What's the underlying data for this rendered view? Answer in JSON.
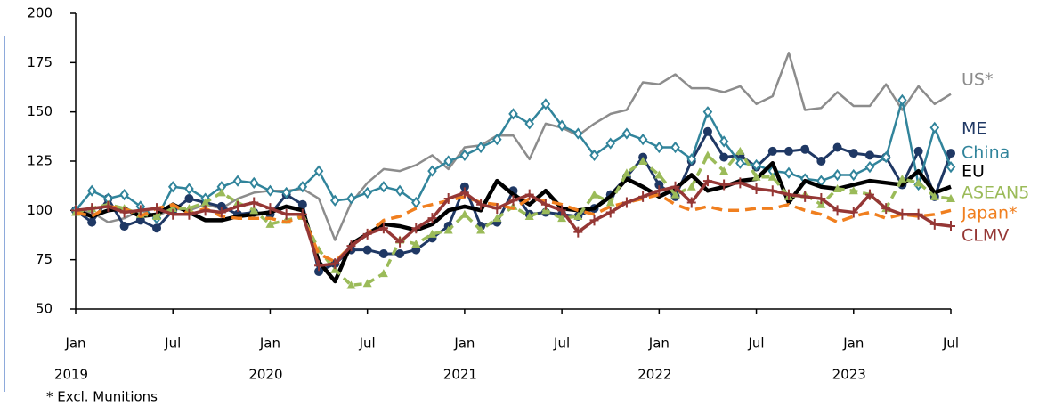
{
  "chart_data": {
    "type": "line",
    "categories": [
      "Jan",
      null,
      null,
      null,
      null,
      null,
      "Jul",
      null,
      null,
      null,
      null,
      null,
      "Jan",
      null,
      null,
      null,
      null,
      null,
      "Jul",
      null,
      null,
      null,
      null,
      null,
      "Jan",
      null,
      null,
      null,
      null,
      null,
      "Jul",
      null,
      null,
      null,
      null,
      null,
      "Jan",
      null,
      null,
      null,
      null,
      null,
      "Jul",
      null,
      null,
      null,
      null,
      null,
      "Jan",
      null,
      null,
      null,
      null,
      null,
      "Jul"
    ],
    "years": [
      "2019",
      "2020",
      "2021",
      "2022",
      "2023"
    ],
    "ylim": [
      50,
      200
    ],
    "yticks": [
      50,
      75,
      100,
      125,
      150,
      175,
      200
    ],
    "note": "* Excl. Munitions",
    "series": [
      {
        "name": "US*",
        "color": "#8c8c8c",
        "marker": "none",
        "values": [
          100,
          99,
          94,
          96,
          100,
          97,
          101,
          100,
          103,
          101,
          106,
          109,
          110,
          110,
          111,
          106,
          85,
          104,
          114,
          121,
          120,
          123,
          128,
          121,
          132,
          133,
          138,
          138,
          126,
          144,
          142,
          138,
          144,
          149,
          151,
          165,
          164,
          169,
          162,
          162,
          160,
          163,
          154,
          158,
          180,
          151,
          152,
          160,
          153,
          153,
          164,
          151,
          163,
          154,
          159
        ]
      },
      {
        "name": "ME",
        "color": "#1f3864",
        "marker": "circle",
        "values": [
          100,
          94,
          106,
          92,
          95,
          91,
          100,
          106,
          104,
          102,
          98,
          99,
          98,
          108,
          103,
          69,
          73,
          80,
          80,
          78,
          78,
          80,
          86,
          92,
          112,
          92,
          94,
          110,
          98,
          99,
          98,
          97,
          101,
          108,
          117,
          127,
          113,
          107,
          125,
          140,
          127,
          128,
          122,
          130,
          130,
          131,
          125,
          132,
          129,
          128,
          127,
          113,
          130,
          107,
          129
        ]
      },
      {
        "name": "China",
        "color": "#31849b",
        "marker": "diamond",
        "values": [
          100,
          110,
          106,
          108,
          102,
          96,
          112,
          111,
          106,
          112,
          115,
          114,
          110,
          109,
          112,
          120,
          105,
          106,
          109,
          112,
          110,
          104,
          120,
          125,
          128,
          132,
          136,
          149,
          144,
          154,
          143,
          139,
          128,
          134,
          139,
          136,
          132,
          132,
          126,
          150,
          135,
          124,
          123,
          120,
          119,
          116,
          115,
          118,
          118,
          122,
          127,
          156,
          113,
          142,
          122
        ]
      },
      {
        "name": "EU",
        "color": "#000000",
        "marker": "none",
        "values": [
          100,
          97,
          100,
          101,
          97,
          98,
          103,
          99,
          95,
          95,
          97,
          98,
          99,
          102,
          100,
          74,
          64,
          83,
          88,
          93,
          92,
          90,
          93,
          100,
          102,
          100,
          115,
          108,
          103,
          110,
          101,
          100,
          101,
          107,
          116,
          112,
          107,
          111,
          118,
          110,
          112,
          115,
          116,
          124,
          104,
          115,
          112,
          111,
          113,
          115,
          114,
          113,
          120,
          109,
          112
        ]
      },
      {
        "name": "ASEAN5",
        "color": "#9bbb59",
        "marker": "triangle",
        "values": [
          99,
          101,
          103,
          101,
          98,
          97,
          101,
          101,
          104,
          109,
          104,
          100,
          93,
          95,
          97,
          80,
          70,
          62,
          63,
          68,
          85,
          83,
          88,
          90,
          98,
          90,
          96,
          102,
          97,
          100,
          96,
          97,
          108,
          104,
          119,
          125,
          118,
          108,
          112,
          128,
          120,
          130,
          117,
          117,
          107,
          108,
          103,
          111,
          110,
          108,
          101,
          116,
          114,
          107,
          106
        ]
      },
      {
        "name": "Japan*",
        "color": "#f07f1f",
        "marker": "none",
        "values": [
          99,
          97,
          102,
          101,
          97,
          101,
          103,
          98,
          101,
          97,
          96,
          96,
          96,
          94,
          97,
          78,
          74,
          82,
          88,
          95,
          97,
          101,
          103,
          105,
          107,
          104,
          103,
          101,
          106,
          105,
          103,
          100,
          98,
          102,
          104,
          106,
          108,
          103,
          100,
          102,
          100,
          100,
          101,
          101,
          103,
          100,
          98,
          94,
          97,
          99,
          96,
          98,
          97,
          98,
          100
        ]
      },
      {
        "name": "CLMV",
        "color": "#953735",
        "marker": "plus",
        "values": [
          100,
          101,
          102,
          99,
          100,
          101,
          98,
          98,
          100,
          99,
          102,
          104,
          101,
          98,
          98,
          72,
          73,
          82,
          88,
          91,
          84,
          91,
          96,
          106,
          109,
          103,
          101,
          105,
          108,
          103,
          100,
          89,
          95,
          99,
          104,
          107,
          110,
          112,
          104,
          115,
          113,
          114,
          111,
          110,
          108,
          107,
          106,
          100,
          99,
          108,
          101,
          98,
          98,
          93,
          92
        ]
      }
    ]
  }
}
